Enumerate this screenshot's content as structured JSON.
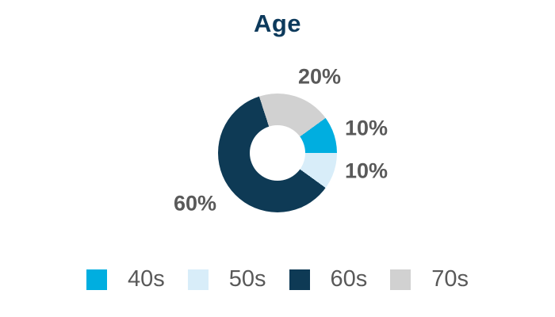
{
  "chart_data": {
    "type": "pie",
    "subtype": "donut",
    "title": "Age",
    "start_angle_deg": 54,
    "direction": "clockwise",
    "categories": [
      "40s",
      "50s",
      "60s",
      "70s"
    ],
    "values": [
      10,
      10,
      60,
      20
    ],
    "slices": [
      {
        "label": "40s",
        "value": 10,
        "percent_label": "10%",
        "color": "#00aee0"
      },
      {
        "label": "50s",
        "value": 10,
        "percent_label": "10%",
        "color": "#d8edf9"
      },
      {
        "label": "60s",
        "value": 60,
        "percent_label": "60%",
        "color": "#0e3a55"
      },
      {
        "label": "70s",
        "value": 20,
        "percent_label": "20%",
        "color": "#d1d1d1"
      }
    ],
    "legend_position": "bottom",
    "colors": {
      "title_text": "#0d3a5c",
      "label_text": "#595959",
      "background": "#ffffff"
    }
  }
}
